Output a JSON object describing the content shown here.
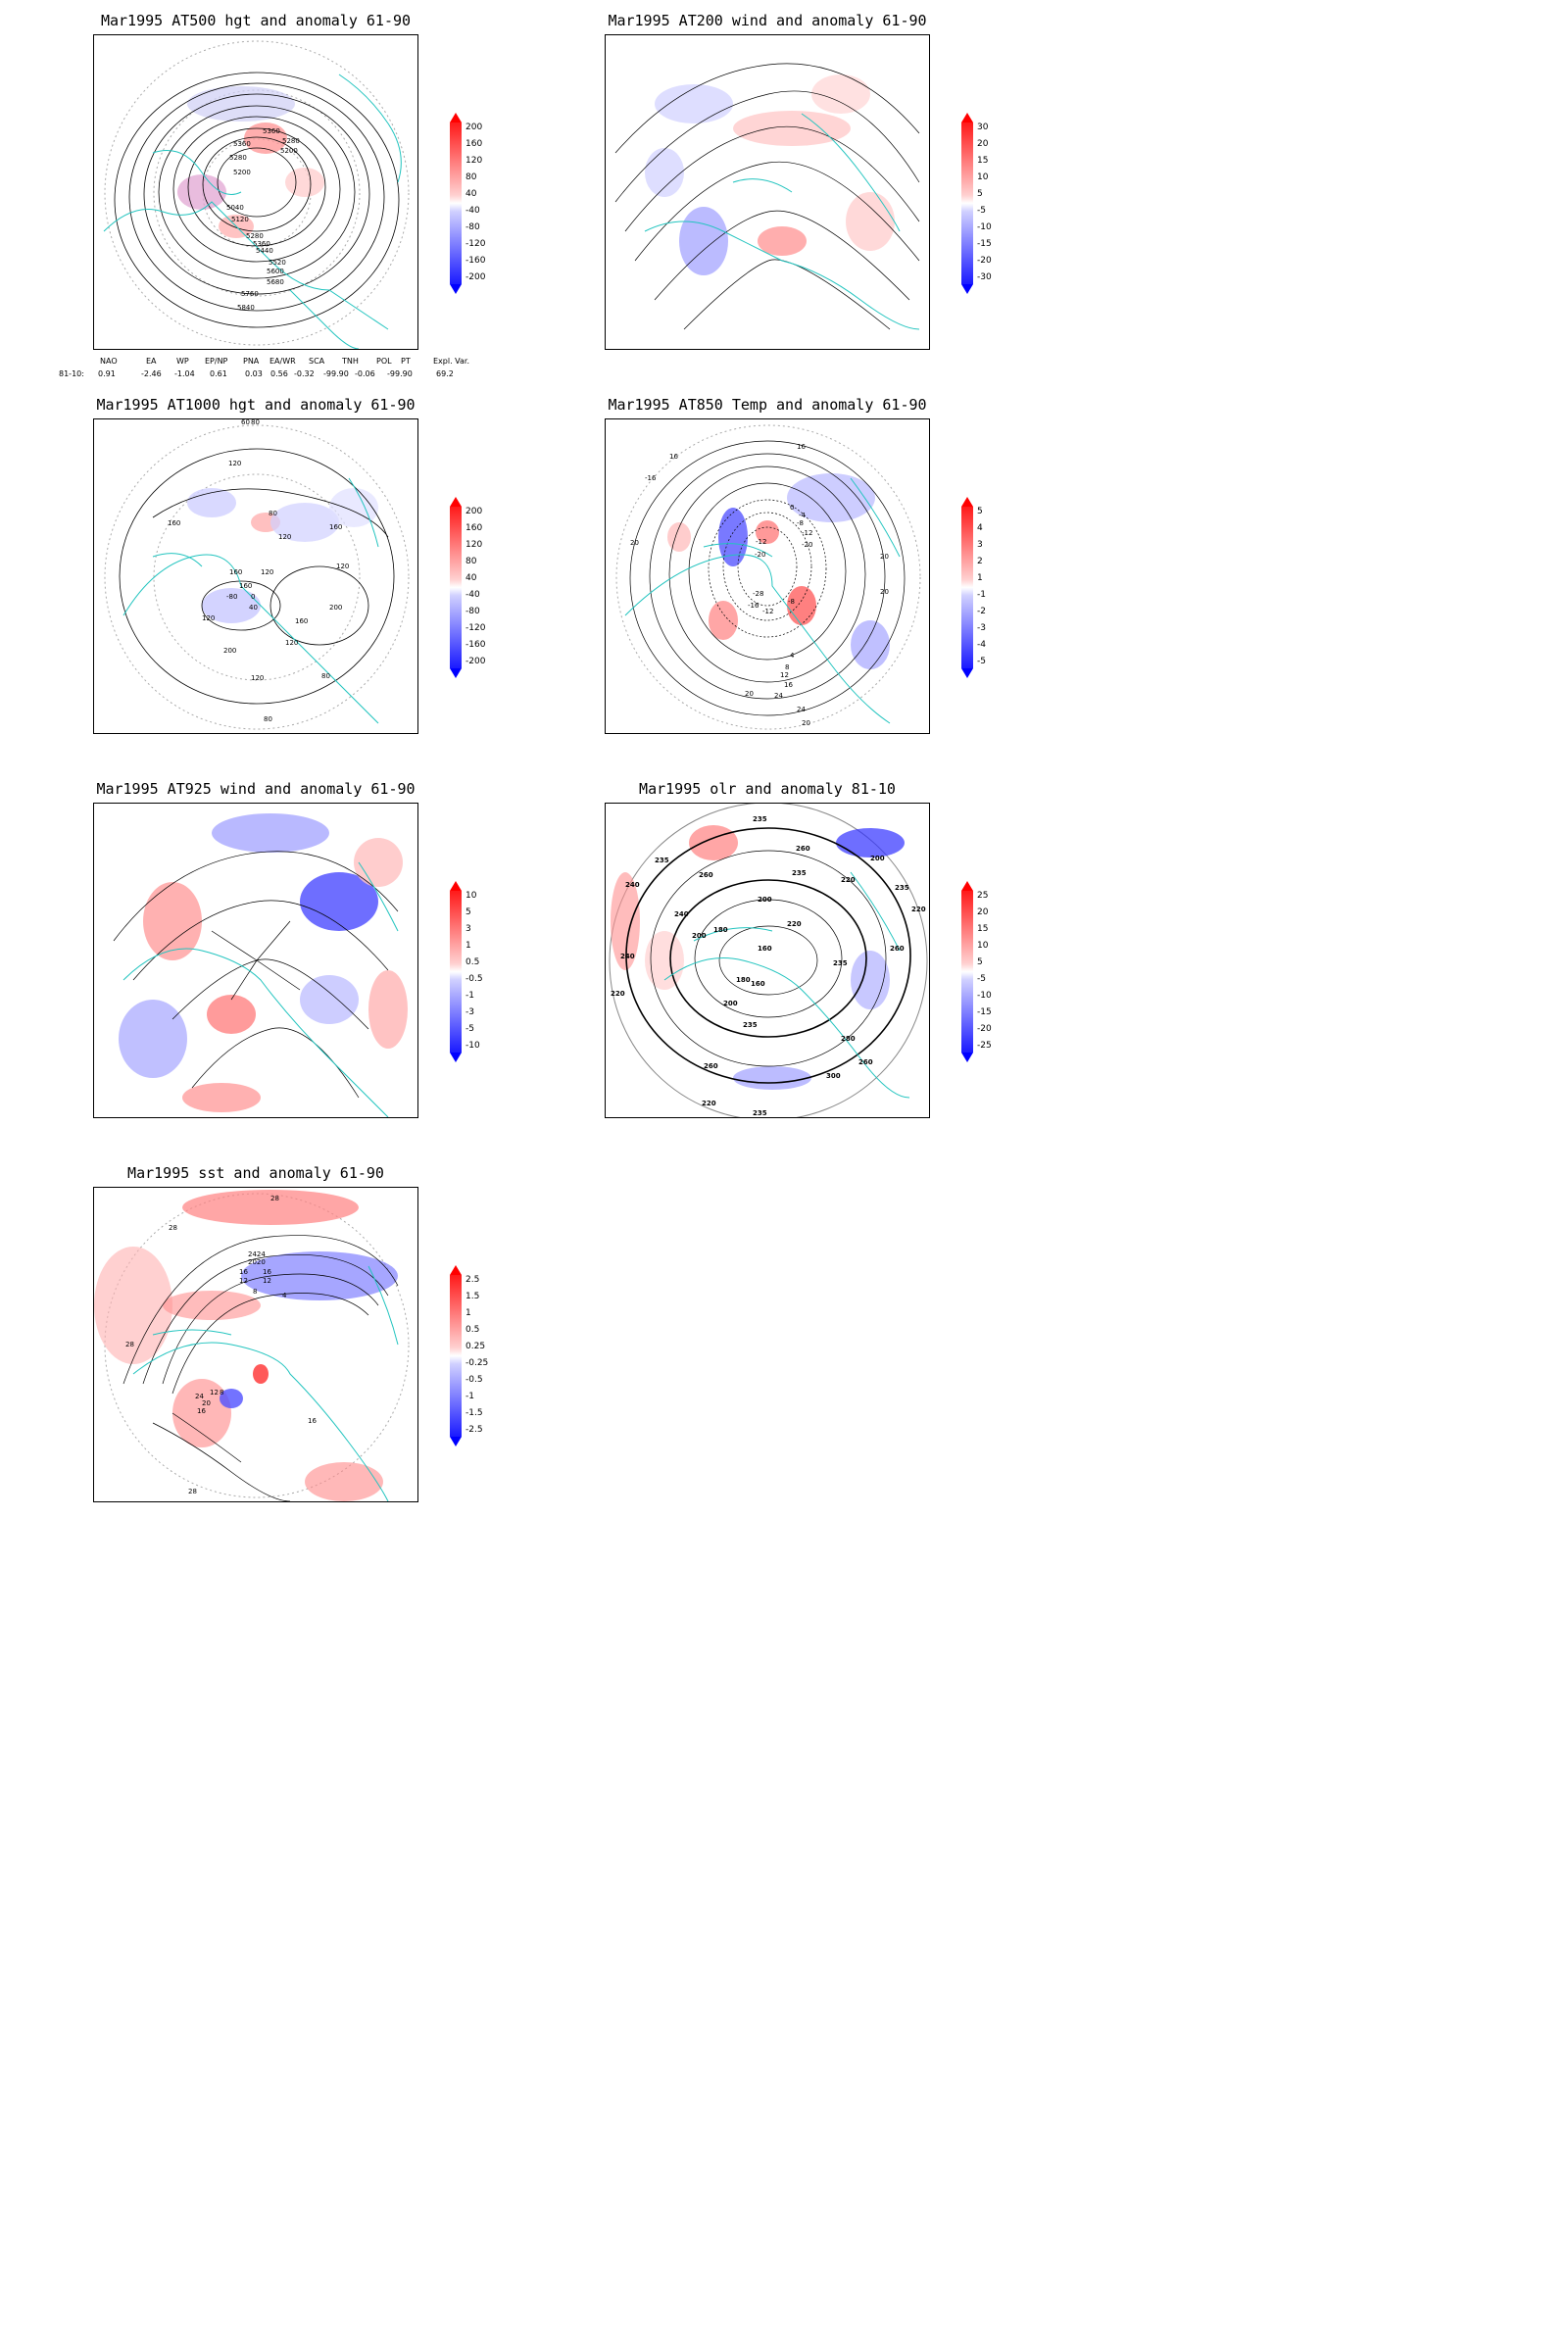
{
  "panels": [
    {
      "id": "at500",
      "title": "Mar1995 AT500 hgt and anomaly 61-90",
      "legend": [
        "200",
        "160",
        "120",
        "80",
        "40",
        "-40",
        "-80",
        "-120",
        "-160",
        "-200"
      ],
      "contour_labels": [
        "5360",
        "5360",
        "5280",
        "5200",
        "5280",
        "5200",
        "5040",
        "5120",
        "5280",
        "5360",
        "5440",
        "5520",
        "5600",
        "5680",
        "5760",
        "5840"
      ]
    },
    {
      "id": "at200",
      "title": "Mar1995 AT200 wind and anomaly 61-90",
      "legend": [
        "30",
        "20",
        "15",
        "10",
        "5",
        "-5",
        "-10",
        "-15",
        "-20",
        "-30"
      ],
      "contour_labels": []
    },
    {
      "id": "at1000",
      "title": "Mar1995 AT1000 hgt and anomaly 61-90",
      "legend": [
        "200",
        "160",
        "120",
        "80",
        "40",
        "-40",
        "-80",
        "-120",
        "-160",
        "-200"
      ],
      "contour_labels": [
        "60",
        "80",
        "120",
        "160",
        "80",
        "120",
        "160",
        "160",
        "120",
        "160",
        "120",
        "-80",
        "40",
        "0",
        "120",
        "200",
        "160",
        "200",
        "120",
        "120",
        "80",
        "80"
      ]
    },
    {
      "id": "at850",
      "title": "Mar1995 AT850 Temp and anomaly 61-90",
      "legend": [
        "5",
        "4",
        "3",
        "2",
        "1",
        "-1",
        "-2",
        "-3",
        "-4",
        "-5"
      ],
      "contour_labels": [
        "-16",
        "16",
        "16",
        "20",
        "0",
        "-4",
        "-8",
        "-12",
        "-20",
        "-12",
        "-20",
        "-28",
        "-16",
        "-12",
        "-8",
        "20",
        "20",
        "4",
        "8",
        "12",
        "16",
        "20",
        "24",
        "24",
        "20"
      ]
    },
    {
      "id": "at925",
      "title": "Mar1995 AT925 wind and anomaly 61-90",
      "legend": [
        "10",
        "5",
        "3",
        "1",
        "0.5",
        "-0.5",
        "-1",
        "-3",
        "-5",
        "-10"
      ],
      "contour_labels": []
    },
    {
      "id": "olr",
      "title": "Mar1995 olr and anomaly 81-10",
      "legend": [
        "25",
        "20",
        "15",
        "10",
        "5",
        "-5",
        "-10",
        "-15",
        "-20",
        "-25"
      ],
      "contour_labels": [
        "235",
        "260",
        "235",
        "200",
        "235",
        "260",
        "220",
        "240",
        "235",
        "220",
        "200",
        "240",
        "200",
        "180",
        "160",
        "220",
        "235",
        "180",
        "160",
        "200",
        "235",
        "260",
        "240",
        "220",
        "260",
        "280",
        "300",
        "260",
        "235",
        "220"
      ]
    },
    {
      "id": "sst",
      "title": "Mar1995 sst and anomaly 61-90",
      "legend": [
        "2.5",
        "1.5",
        "1",
        "0.5",
        "0.25",
        "-0.25",
        "-0.5",
        "-1",
        "-1.5",
        "-2.5"
      ],
      "contour_labels": [
        "28",
        "28",
        "2424",
        "2020",
        "16",
        "16",
        "12",
        "12",
        "8",
        "4",
        "28",
        "24",
        "20",
        "16",
        "12",
        "8",
        "16",
        "28"
      ]
    }
  ],
  "indices": {
    "header": [
      "NAO",
      "EA",
      "WP",
      "EP/NP",
      "PNA",
      "EA/WR",
      "SCA",
      "TNH",
      "POL",
      "PT",
      "Expl. Var."
    ],
    "row_label": "81-10:",
    "values": [
      "0.91",
      "-2.46",
      "-1.04",
      "0.61",
      "0.03",
      "0.56",
      "-0.32",
      "-99.90",
      "-0.06",
      "-99.90",
      "69.2"
    ]
  },
  "colors": {
    "coast": "#22c4bf",
    "red_max": "#ff1a1a",
    "blue_max": "#1a1aff"
  }
}
